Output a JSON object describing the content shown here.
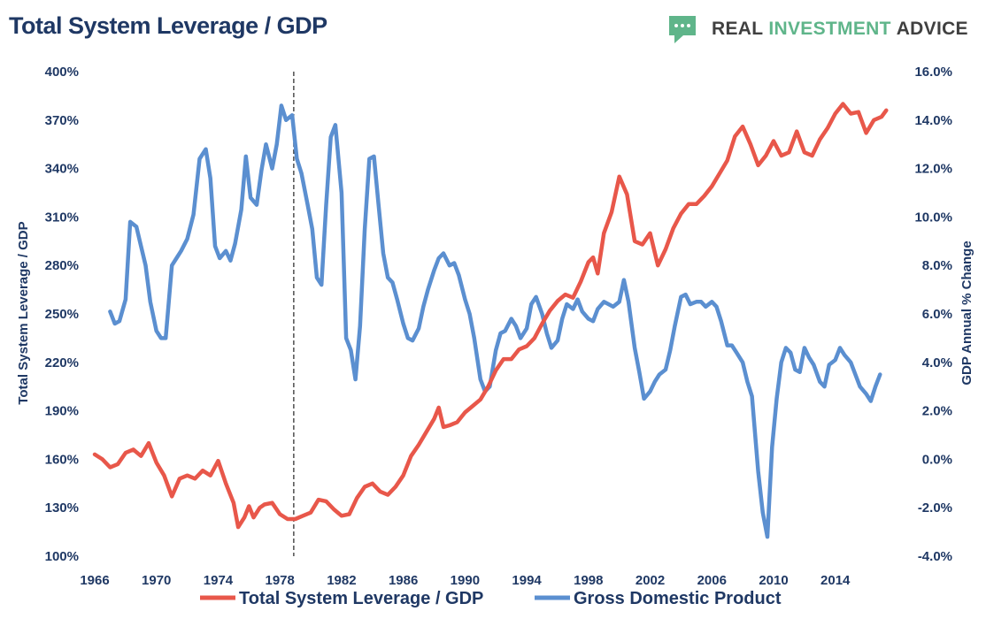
{
  "header": {
    "title": "Total System Leverage / GDP",
    "logo_words": [
      "REAL",
      "INVESTMENT",
      "ADVICE"
    ],
    "logo_icon": "speech-bubble-icon",
    "logo_color": "#5fb58a"
  },
  "chart_data": {
    "type": "line",
    "grid": false,
    "legend_position": "bottom",
    "x_range": [
      1966,
      2017.4
    ],
    "x_ticks": [
      "1966",
      "1970",
      "1974",
      "1978",
      "1982",
      "1986",
      "1990",
      "1994",
      "1998",
      "2002",
      "2006",
      "2010",
      "2014"
    ],
    "y_left": {
      "label": "Total System Leverage / GDP",
      "range": [
        100,
        400
      ],
      "ticks": [
        "100%",
        "130%",
        "160%",
        "190%",
        "220%",
        "250%",
        "280%",
        "310%",
        "340%",
        "370%",
        "400%"
      ]
    },
    "y_right": {
      "label": "GDP Annual % Change",
      "range": [
        -4,
        16
      ],
      "ticks": [
        "-4.0%",
        "-2.0%",
        "0.0%",
        "2.0%",
        "4.0%",
        "6.0%",
        "8.0%",
        "10.0%",
        "12.0%",
        "14.0%",
        "16.0%"
      ]
    },
    "reference_line_x": 1978.9,
    "series": [
      {
        "name": "Total System Leverage / GDP",
        "axis": "left",
        "color": "#e8574a",
        "points": [
          [
            1966,
            163
          ],
          [
            1966.5,
            160
          ],
          [
            1967,
            155
          ],
          [
            1967.5,
            157
          ],
          [
            1968,
            164
          ],
          [
            1968.5,
            166
          ],
          [
            1969,
            162
          ],
          [
            1969.5,
            170
          ],
          [
            1970,
            158
          ],
          [
            1970.5,
            150
          ],
          [
            1971,
            137
          ],
          [
            1971.5,
            148
          ],
          [
            1972,
            150
          ],
          [
            1972.5,
            148
          ],
          [
            1973,
            153
          ],
          [
            1973.5,
            150
          ],
          [
            1974,
            159
          ],
          [
            1974.5,
            145
          ],
          [
            1975,
            133
          ],
          [
            1975.3,
            118
          ],
          [
            1975.7,
            124
          ],
          [
            1976,
            131
          ],
          [
            1976.3,
            124
          ],
          [
            1976.7,
            130
          ],
          [
            1977,
            132
          ],
          [
            1977.5,
            133
          ],
          [
            1978,
            126
          ],
          [
            1978.5,
            123
          ],
          [
            1979,
            123
          ],
          [
            1979.5,
            125
          ],
          [
            1980,
            127
          ],
          [
            1980.5,
            135
          ],
          [
            1981,
            134
          ],
          [
            1981.5,
            129
          ],
          [
            1982,
            125
          ],
          [
            1982.5,
            126
          ],
          [
            1983,
            136
          ],
          [
            1983.5,
            143
          ],
          [
            1984,
            145
          ],
          [
            1984.5,
            140
          ],
          [
            1985,
            138
          ],
          [
            1985.5,
            143
          ],
          [
            1986,
            150
          ],
          [
            1986.5,
            162
          ],
          [
            1987,
            169
          ],
          [
            1987.5,
            177
          ],
          [
            1988,
            185
          ],
          [
            1988.3,
            192
          ],
          [
            1988.6,
            180
          ],
          [
            1989,
            181
          ],
          [
            1989.5,
            183
          ],
          [
            1990,
            189
          ],
          [
            1990.5,
            193
          ],
          [
            1991,
            197
          ],
          [
            1991.5,
            205
          ],
          [
            1992,
            215
          ],
          [
            1992.5,
            222
          ],
          [
            1993,
            222
          ],
          [
            1993.5,
            228
          ],
          [
            1994,
            230
          ],
          [
            1994.5,
            235
          ],
          [
            1995,
            244
          ],
          [
            1995.5,
            252
          ],
          [
            1996,
            258
          ],
          [
            1996.5,
            262
          ],
          [
            1997,
            260
          ],
          [
            1997.5,
            270
          ],
          [
            1998,
            282
          ],
          [
            1998.3,
            285
          ],
          [
            1998.6,
            275
          ],
          [
            1999,
            300
          ],
          [
            1999.5,
            313
          ],
          [
            2000,
            335
          ],
          [
            2000.5,
            324
          ],
          [
            2001,
            295
          ],
          [
            2001.5,
            293
          ],
          [
            2002,
            300
          ],
          [
            2002.5,
            280
          ],
          [
            2003,
            290
          ],
          [
            2003.5,
            303
          ],
          [
            2004,
            312
          ],
          [
            2004.5,
            318
          ],
          [
            2005,
            318
          ],
          [
            2005.5,
            323
          ],
          [
            2006,
            329
          ],
          [
            2006.5,
            337
          ],
          [
            2007,
            345
          ],
          [
            2007.5,
            360
          ],
          [
            2008,
            366
          ],
          [
            2008.5,
            355
          ],
          [
            2009,
            342
          ],
          [
            2009.5,
            348
          ],
          [
            2010,
            357
          ],
          [
            2010.5,
            348
          ],
          [
            2011,
            350
          ],
          [
            2011.5,
            363
          ],
          [
            2012,
            350
          ],
          [
            2012.5,
            348
          ],
          [
            2013,
            358
          ],
          [
            2013.5,
            365
          ],
          [
            2014,
            374
          ],
          [
            2014.5,
            380
          ],
          [
            2015,
            374
          ],
          [
            2015.5,
            375
          ],
          [
            2016,
            362
          ],
          [
            2016.5,
            370
          ],
          [
            2017,
            372
          ],
          [
            2017.3,
            376
          ]
        ]
      },
      {
        "name": "Gross Domestic Product",
        "axis": "right",
        "color": "#5b8fd0",
        "points": [
          [
            1967,
            6.1
          ],
          [
            1967.3,
            5.6
          ],
          [
            1967.6,
            5.7
          ],
          [
            1968,
            6.6
          ],
          [
            1968.3,
            9.8
          ],
          [
            1968.7,
            9.6
          ],
          [
            1969,
            8.8
          ],
          [
            1969.3,
            8.0
          ],
          [
            1969.6,
            6.5
          ],
          [
            1970,
            5.3
          ],
          [
            1970.3,
            5.0
          ],
          [
            1970.6,
            5.0
          ],
          [
            1971,
            8.0
          ],
          [
            1971.3,
            8.3
          ],
          [
            1971.6,
            8.6
          ],
          [
            1972,
            9.1
          ],
          [
            1972.4,
            10.1
          ],
          [
            1972.8,
            12.4
          ],
          [
            1973.2,
            12.8
          ],
          [
            1973.5,
            11.6
          ],
          [
            1973.8,
            8.8
          ],
          [
            1974.1,
            8.3
          ],
          [
            1974.5,
            8.6
          ],
          [
            1974.8,
            8.2
          ],
          [
            1975.1,
            8.9
          ],
          [
            1975.5,
            10.3
          ],
          [
            1975.8,
            12.5
          ],
          [
            1976.1,
            10.8
          ],
          [
            1976.5,
            10.5
          ],
          [
            1976.8,
            11.9
          ],
          [
            1977.1,
            13.0
          ],
          [
            1977.5,
            12.0
          ],
          [
            1977.8,
            13.0
          ],
          [
            1978.1,
            14.6
          ],
          [
            1978.4,
            14.0
          ],
          [
            1978.8,
            14.2
          ],
          [
            1979.1,
            12.4
          ],
          [
            1979.4,
            11.8
          ],
          [
            1979.8,
            10.5
          ],
          [
            1980.1,
            9.5
          ],
          [
            1980.4,
            7.5
          ],
          [
            1980.7,
            7.2
          ],
          [
            1981,
            10.5
          ],
          [
            1981.3,
            13.3
          ],
          [
            1981.6,
            13.8
          ],
          [
            1982,
            11.0
          ],
          [
            1982.3,
            5.0
          ],
          [
            1982.6,
            4.5
          ],
          [
            1982.9,
            3.3
          ],
          [
            1983.2,
            5.5
          ],
          [
            1983.5,
            9.5
          ],
          [
            1983.8,
            12.4
          ],
          [
            1984.1,
            12.5
          ],
          [
            1984.4,
            10.5
          ],
          [
            1984.7,
            8.5
          ],
          [
            1985,
            7.5
          ],
          [
            1985.3,
            7.3
          ],
          [
            1985.6,
            6.6
          ],
          [
            1986,
            5.6
          ],
          [
            1986.3,
            5.0
          ],
          [
            1986.6,
            4.9
          ],
          [
            1987,
            5.4
          ],
          [
            1987.3,
            6.3
          ],
          [
            1987.6,
            7.0
          ],
          [
            1988,
            7.8
          ],
          [
            1988.3,
            8.3
          ],
          [
            1988.6,
            8.5
          ],
          [
            1989,
            8.0
          ],
          [
            1989.3,
            8.1
          ],
          [
            1989.6,
            7.6
          ],
          [
            1990,
            6.6
          ],
          [
            1990.3,
            6.0
          ],
          [
            1990.6,
            5.0
          ],
          [
            1991,
            3.3
          ],
          [
            1991.3,
            2.8
          ],
          [
            1991.6,
            3.0
          ],
          [
            1992,
            4.5
          ],
          [
            1992.3,
            5.2
          ],
          [
            1992.6,
            5.3
          ],
          [
            1993,
            5.8
          ],
          [
            1993.3,
            5.5
          ],
          [
            1993.6,
            5.0
          ],
          [
            1994,
            5.4
          ],
          [
            1994.3,
            6.4
          ],
          [
            1994.6,
            6.7
          ],
          [
            1995,
            6.0
          ],
          [
            1995.3,
            5.2
          ],
          [
            1995.6,
            4.6
          ],
          [
            1996,
            4.9
          ],
          [
            1996.3,
            5.8
          ],
          [
            1996.6,
            6.4
          ],
          [
            1997,
            6.2
          ],
          [
            1997.3,
            6.6
          ],
          [
            1997.6,
            6.1
          ],
          [
            1998,
            5.8
          ],
          [
            1998.3,
            5.7
          ],
          [
            1998.6,
            6.2
          ],
          [
            1999,
            6.5
          ],
          [
            1999.3,
            6.4
          ],
          [
            1999.6,
            6.3
          ],
          [
            2000,
            6.5
          ],
          [
            2000.3,
            7.4
          ],
          [
            2000.6,
            6.5
          ],
          [
            2001,
            4.6
          ],
          [
            2001.3,
            3.6
          ],
          [
            2001.6,
            2.5
          ],
          [
            2002,
            2.8
          ],
          [
            2002.3,
            3.2
          ],
          [
            2002.6,
            3.5
          ],
          [
            2003,
            3.7
          ],
          [
            2003.3,
            4.5
          ],
          [
            2003.6,
            5.5
          ],
          [
            2004,
            6.7
          ],
          [
            2004.3,
            6.8
          ],
          [
            2004.6,
            6.4
          ],
          [
            2005,
            6.5
          ],
          [
            2005.3,
            6.5
          ],
          [
            2005.6,
            6.3
          ],
          [
            2006,
            6.5
          ],
          [
            2006.3,
            6.3
          ],
          [
            2006.6,
            5.7
          ],
          [
            2007,
            4.7
          ],
          [
            2007.3,
            4.7
          ],
          [
            2007.6,
            4.4
          ],
          [
            2008,
            4.0
          ],
          [
            2008.3,
            3.2
          ],
          [
            2008.6,
            2.6
          ],
          [
            2009,
            -0.5
          ],
          [
            2009.3,
            -2.2
          ],
          [
            2009.6,
            -3.2
          ],
          [
            2009.9,
            0.5
          ],
          [
            2010.2,
            2.5
          ],
          [
            2010.5,
            4.0
          ],
          [
            2010.8,
            4.6
          ],
          [
            2011.1,
            4.4
          ],
          [
            2011.4,
            3.7
          ],
          [
            2011.7,
            3.6
          ],
          [
            2012,
            4.6
          ],
          [
            2012.3,
            4.2
          ],
          [
            2012.6,
            3.9
          ],
          [
            2013,
            3.2
          ],
          [
            2013.3,
            3.0
          ],
          [
            2013.6,
            3.9
          ],
          [
            2014,
            4.1
          ],
          [
            2014.3,
            4.6
          ],
          [
            2014.6,
            4.3
          ],
          [
            2015,
            4.0
          ],
          [
            2015.3,
            3.5
          ],
          [
            2015.6,
            3.0
          ],
          [
            2016,
            2.7
          ],
          [
            2016.3,
            2.4
          ],
          [
            2016.6,
            3.0
          ],
          [
            2016.9,
            3.5
          ]
        ]
      }
    ]
  }
}
